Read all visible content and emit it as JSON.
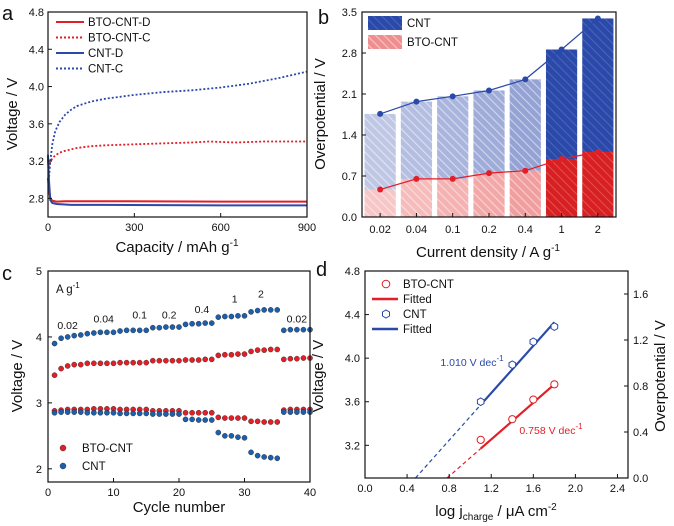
{
  "chart_data": [
    {
      "panel": "a",
      "type": "line",
      "xlabel": "Capacity / mAh g",
      "xlabel_sup": "-1",
      "ylabel": "Voltage / V",
      "xlim": [
        0,
        900
      ],
      "ylim": [
        2.6,
        4.8
      ],
      "xticks": [
        0,
        300,
        600,
        900
      ],
      "yticks": [
        2.8,
        3.2,
        3.6,
        4.0,
        4.4,
        4.8
      ],
      "legend": [
        "BTO-CNT-D",
        "BTO-CNT-C",
        "CNT-D",
        "CNT-C"
      ],
      "colors": {
        "red": "#e21e26",
        "blue": "#2a49a8"
      },
      "series": [
        {
          "name": "BTO-CNT-D",
          "color": "#e21e26",
          "dash": false,
          "x": [
            0,
            3,
            8,
            15,
            30,
            60,
            200,
            600,
            900
          ],
          "y": [
            3.02,
            2.9,
            2.8,
            2.775,
            2.765,
            2.77,
            2.77,
            2.765,
            2.765
          ]
        },
        {
          "name": "BTO-CNT-C",
          "color": "#e21e26",
          "dash": true,
          "x": [
            0,
            3,
            8,
            15,
            25,
            40,
            60,
            100,
            150,
            200,
            300,
            400,
            500,
            560,
            650,
            750,
            900
          ],
          "y": [
            3.2,
            3.12,
            3.19,
            3.23,
            3.26,
            3.29,
            3.31,
            3.34,
            3.36,
            3.37,
            3.38,
            3.39,
            3.4,
            3.41,
            3.4,
            3.41,
            3.41
          ]
        },
        {
          "name": "CNT-D",
          "color": "#2a49a8",
          "dash": false,
          "x": [
            0,
            3,
            8,
            15,
            30,
            80,
            200,
            600,
            900
          ],
          "y": [
            3.25,
            3.0,
            2.78,
            2.75,
            2.74,
            2.73,
            2.73,
            2.725,
            2.725
          ]
        },
        {
          "name": "CNT-C",
          "color": "#2a49a8",
          "dash": true,
          "x": [
            0,
            3,
            8,
            15,
            25,
            40,
            60,
            80,
            100,
            150,
            200,
            300,
            400,
            500,
            600,
            700,
            800,
            900
          ],
          "y": [
            3.27,
            3.0,
            3.2,
            3.38,
            3.52,
            3.62,
            3.7,
            3.75,
            3.79,
            3.84,
            3.87,
            3.91,
            3.94,
            3.96,
            3.99,
            4.03,
            4.09,
            4.16
          ]
        }
      ]
    },
    {
      "panel": "b",
      "type": "bar",
      "xlabel": "Current density / A g",
      "xlabel_sup": "-1",
      "ylabel": "Overpotential / V",
      "categories": [
        "0.02",
        "0.04",
        "0.1",
        "0.2",
        "0.4",
        "1",
        "2"
      ],
      "ylim": [
        0,
        3.5
      ],
      "yticks": [
        0.0,
        0.7,
        1.4,
        2.1,
        2.8,
        3.5
      ],
      "yticklabels": [
        "0.0",
        "0.7",
        "1.4",
        "2.1",
        "2.8",
        "3.5"
      ],
      "legend": [
        "CNT",
        "BTO-CNT"
      ],
      "series": [
        {
          "name": "CNT",
          "color": "#2a49a8",
          "values": [
            1.76,
            1.97,
            2.06,
            2.16,
            2.35,
            2.86,
            3.39
          ]
        },
        {
          "name": "BTO-CNT",
          "color": "#e21e26",
          "values": [
            0.47,
            0.65,
            0.65,
            0.75,
            0.79,
            0.99,
            1.11
          ]
        }
      ]
    },
    {
      "panel": "c",
      "type": "scatter",
      "xlabel": "Cycle number",
      "ylabel": "Voltage / V",
      "xlim": [
        0,
        40
      ],
      "ylim": [
        1.8,
        5.0
      ],
      "xticks": [
        0,
        10,
        20,
        30,
        40
      ],
      "yticks": [
        2,
        3,
        4,
        5
      ],
      "unit_label": "A g",
      "unit_sup": "-1",
      "rate_labels": [
        "0.02",
        "0.04",
        "0.1",
        "0.2",
        "0.4",
        "1",
        "2",
        "0.02"
      ],
      "legend": [
        "BTO-CNT",
        "CNT"
      ],
      "series": [
        {
          "name": "BTO-CNT",
          "color": "#e21e26",
          "role": "charge",
          "values": [
            3.42,
            3.52,
            3.56,
            3.58,
            3.58,
            3.6,
            3.6,
            3.6,
            3.6,
            3.6,
            3.61,
            3.61,
            3.61,
            3.61,
            3.61,
            3.64,
            3.64,
            3.64,
            3.64,
            3.64,
            3.65,
            3.65,
            3.65,
            3.66,
            3.66,
            3.72,
            3.73,
            3.73,
            3.74,
            3.74,
            3.78,
            3.8,
            3.8,
            3.81,
            3.81,
            3.66,
            3.67,
            3.67,
            3.68,
            3.68
          ]
        },
        {
          "name": "BTO-CNT",
          "color": "#e21e26",
          "role": "discharge",
          "values": [
            2.88,
            2.89,
            2.9,
            2.9,
            2.9,
            2.9,
            2.91,
            2.91,
            2.91,
            2.91,
            2.9,
            2.9,
            2.9,
            2.9,
            2.9,
            2.88,
            2.88,
            2.88,
            2.88,
            2.88,
            2.85,
            2.85,
            2.85,
            2.85,
            2.85,
            2.78,
            2.77,
            2.77,
            2.77,
            2.77,
            2.72,
            2.72,
            2.71,
            2.71,
            2.71,
            2.89,
            2.9,
            2.9,
            2.9,
            2.9
          ]
        },
        {
          "name": "CNT",
          "color": "#1b5fad",
          "role": "charge",
          "values": [
            3.9,
            3.98,
            4.0,
            4.02,
            4.03,
            4.05,
            4.06,
            4.07,
            4.07,
            4.07,
            4.09,
            4.1,
            4.1,
            4.1,
            4.1,
            4.14,
            4.14,
            4.15,
            4.15,
            4.15,
            4.19,
            4.2,
            4.2,
            4.21,
            4.21,
            4.3,
            4.31,
            4.31,
            4.32,
            4.32,
            4.38,
            4.4,
            4.41,
            4.41,
            4.41,
            4.1,
            4.11,
            4.11,
            4.11,
            4.11
          ]
        },
        {
          "name": "CNT",
          "color": "#1b5fad",
          "role": "discharge",
          "values": [
            2.85,
            2.86,
            2.86,
            2.86,
            2.86,
            2.85,
            2.85,
            2.85,
            2.85,
            2.85,
            2.84,
            2.84,
            2.84,
            2.84,
            2.84,
            2.83,
            2.83,
            2.83,
            2.83,
            2.83,
            2.75,
            2.75,
            2.74,
            2.74,
            2.74,
            2.55,
            2.5,
            2.5,
            2.48,
            2.47,
            2.25,
            2.2,
            2.18,
            2.17,
            2.16,
            2.86,
            2.86,
            2.86,
            2.86,
            2.86
          ]
        }
      ]
    },
    {
      "panel": "d",
      "type": "scatter",
      "xlabel": "log j",
      "xlabel_sub": "charge",
      "xlabel_tail": " / μA cm",
      "xlabel_sup": "-2",
      "ylabel": "Voltage / V",
      "ylabel_right": "Overpotential / V",
      "xlim": [
        0.0,
        2.5
      ],
      "ylim": [
        2.9,
        4.8
      ],
      "y2lim": [
        0.0,
        1.8
      ],
      "xticks": [
        0.0,
        0.4,
        0.8,
        1.2,
        1.6,
        2.0,
        2.4
      ],
      "xticklabels": [
        "0.0",
        "0.4",
        "0.8",
        "1.2",
        "1.6",
        "2.0",
        "2.4"
      ],
      "yticks": [
        3.2,
        3.6,
        4.0,
        4.4,
        4.8
      ],
      "yticklabels": [
        "3.2",
        "3.6",
        "4.0",
        "4.4",
        "4.8"
      ],
      "y2ticks": [
        0.0,
        0.4,
        0.8,
        1.2,
        1.6
      ],
      "y2ticklabels": [
        "0.0",
        "0.4",
        "0.8",
        "1.2",
        "1.6"
      ],
      "legend": [
        "BTO-CNT",
        "Fitted",
        "CNT",
        "Fitted"
      ],
      "slope_labels": [
        {
          "series": "CNT",
          "text": "1.010 V dec",
          "sup": "-1"
        },
        {
          "series": "BTO-CNT",
          "text": "0.758 V dec",
          "sup": "-1"
        }
      ],
      "series": [
        {
          "name": "BTO-CNT",
          "color": "#e21e26",
          "marker": "circle",
          "x": [
            1.1,
            1.4,
            1.6,
            1.8
          ],
          "y": [
            3.25,
            3.44,
            3.62,
            3.76
          ],
          "fit": {
            "x_start": 0.78,
            "x_solid_start": 1.1,
            "x_end": 1.8,
            "y_start": 2.9,
            "y_end": 3.76
          }
        },
        {
          "name": "CNT",
          "color": "#2a49a8",
          "marker": "hexagon",
          "x": [
            1.1,
            1.4,
            1.6,
            1.8
          ],
          "y": [
            3.6,
            3.94,
            4.15,
            4.29
          ],
          "fit": {
            "x_start": 0.48,
            "x_solid_start": 1.1,
            "x_end": 1.8,
            "y_start": 2.9,
            "y_end": 4.33
          }
        }
      ]
    }
  ]
}
